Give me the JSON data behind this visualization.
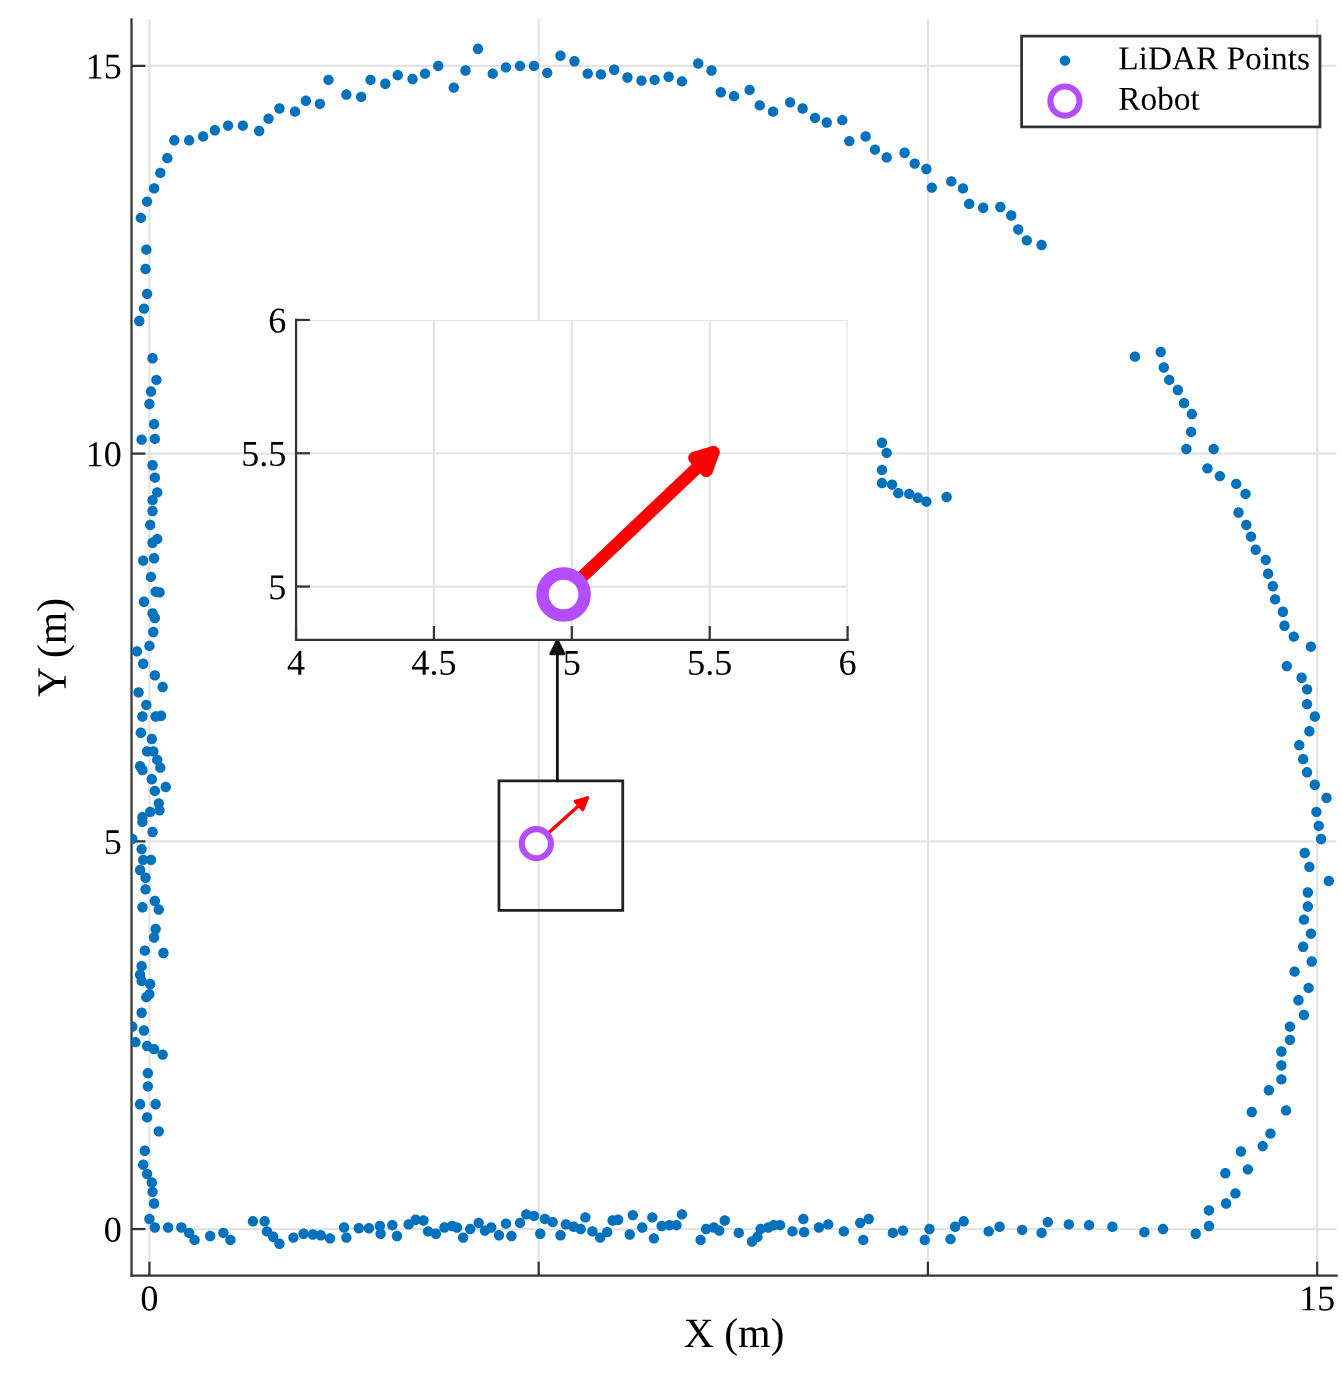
{
  "chart_data": [
    {
      "type": "scatter",
      "xlabel": "X (m)",
      "ylabel": "Y (m)",
      "xlim": [
        -0.23,
        15.25
      ],
      "ylim": [
        -0.6,
        15.6
      ],
      "xticks": [
        0,
        {
          "value": 5,
          "label": null
        },
        {
          "value": 10,
          "label": null
        },
        15
      ],
      "yticks": [
        0,
        5,
        10,
        15
      ],
      "grid": true,
      "legend": "top right",
      "marker": "circle",
      "series": [
        {
          "name": "LiDAR Points",
          "color": "#0072bd",
          "x": [
            -0.04,
            -0.11,
            -0.03,
            0.06,
            0.14,
            0.23,
            0.32,
            0.51,
            0.69,
            0.84,
            1.01,
            1.2,
            1.41,
            1.53,
            1.67,
            1.87,
            2.01,
            2.19,
            2.3,
            2.53,
            2.72,
            2.84,
            3.03,
            3.19,
            3.38,
            3.54,
            3.71,
            3.91,
            4.06,
            4.22,
            4.41,
            4.58,
            4.76,
            4.94,
            5.11,
            5.28,
            5.46,
            5.63,
            5.8,
            5.97,
            6.14,
            6.32,
            6.49,
            6.67,
            6.84,
            7.05,
            7.22,
            7.34,
            7.51,
            7.71,
            7.84,
            8.01,
            8.23,
            8.39,
            8.55,
            8.7,
            8.9,
            8.99,
            9.2,
            9.32,
            9.47,
            9.7,
            9.83,
            9.98,
            10.05,
            10.3,
            10.45,
            10.53,
            10.71,
            10.93,
            11.07,
            11.16,
            11.27,
            11.46,
            9.41,
            9.47,
            9.41,
            9.41,
            9.54,
            9.62,
            9.76,
            9.87,
            9.98,
            10.24,
            12.66,
            12.99,
            13.03,
            13.1,
            13.21,
            13.29,
            13.39,
            13.38,
            13.32,
            13.67,
            13.59,
            13.75,
            13.96,
            14.08,
            13.99,
            14.09,
            14.15,
            14.21,
            14.34,
            14.37,
            14.43,
            14.46,
            14.56,
            14.58,
            14.7,
            14.92,
            14.61,
            14.8,
            14.87,
            14.87,
            14.97,
            14.9,
            14.77,
            14.82,
            14.87,
            14.97,
            15.12,
            14.99,
            15.02,
            15.05,
            14.84,
            14.9,
            15.15,
            14.88,
            14.88,
            14.83,
            14.92,
            14.82,
            14.93,
            14.71,
            14.89,
            14.76,
            14.83,
            14.65,
            14.65,
            14.54,
            14.54,
            14.54,
            14.38,
            14.6,
            14.16,
            14.4,
            14.3,
            14.02,
            14.11,
            13.82,
            13.95,
            13.83,
            13.61,
            13.61,
            13.44,
            13.02,
            12.78,
            12.37,
            12.07,
            -0.06,
            -0.08,
            -0.03,
            0.03,
            0.04,
            0.06,
            0.0,
            0.07,
            0.24,
            0.41,
            0.51,
            0.58,
            0.78,
            0.95,
            1.04,
            1.33,
            1.48,
            1.51,
            1.59,
            1.67,
            1.85,
            1.98,
            2.1,
            2.2,
            2.32,
            2.5,
            2.53,
            2.69,
            2.82,
            2.96,
            2.97,
            3.12,
            3.18,
            3.33,
            3.42,
            3.52,
            3.58,
            3.68,
            3.79,
            3.89,
            3.95,
            4.03,
            4.12,
            4.23,
            4.31,
            4.39,
            4.49,
            4.58,
            4.65,
            4.76,
            4.84,
            4.94,
            5.02,
            5.08,
            5.18,
            5.28,
            5.35,
            5.45,
            5.54,
            5.6,
            5.69,
            5.79,
            5.88,
            5.95,
            6.02,
            6.17,
            6.21,
            6.33,
            6.46,
            6.48,
            6.58,
            6.68,
            6.77,
            6.84,
            7.08,
            7.15,
            7.25,
            7.32,
            7.39,
            7.57,
            7.74,
            7.81,
            7.85,
            7.95,
            8.02,
            8.1,
            8.26,
            8.4,
            8.41,
            8.6,
            8.72,
            8.92,
            9.13,
            9.17,
            9.24,
            9.55,
            9.68,
            9.96,
            10.02,
            10.29,
            10.35,
            10.46,
            10.78,
            10.92,
            11.21,
            11.46,
            11.54,
            11.81,
            -0.05,
            -0.03,
            -0.07,
            -0.13,
            0.04,
            0.09,
            0.02,
            0.0,
            0.06,
            0.07,
            -0.1,
            0.04,
            0.07,
            0.1,
            0.04,
            0.04,
            0.01,
            0.1,
            0.04,
            -0.08,
            0.06,
            0.02,
            0.08,
            0.13,
            -0.07,
            0.04,
            0.07,
            0.05,
            0.0,
            -0.16,
            -0.08,
            0.07,
            0.17,
            -0.14,
            -0.04,
            -0.09,
            0.08,
            -0.11,
            0.15,
            0.03,
            -0.03,
            0.05,
            -0.12,
            -0.09,
            0.1,
            0.03,
            0.14,
            0.21,
            0.07,
            0.12,
            0.13,
            0.01,
            -0.09,
            0.04,
            -0.09,
            -0.22,
            -0.1,
            -0.08,
            0.02,
            -0.12,
            -0.05,
            -0.05,
            0.07,
            -0.09,
            0.12,
            0.08,
            0.06,
            0.18,
            -0.06,
            -0.1,
            -0.12,
            -0.1,
            0.01,
            -0.04,
            0.0,
            -0.1,
            -0.22,
            -0.07,
            -0.18,
            -0.03,
            0.06,
            0.17,
            -0.02,
            -0.02,
            0.08,
            -0.12,
            -0.03,
            0.12
          ],
          "values": [
            12.63,
            13.04,
            13.25,
            13.42,
            13.62,
            13.81,
            14.04,
            14.04,
            14.09,
            14.17,
            14.23,
            14.23,
            14.16,
            14.32,
            14.45,
            14.41,
            14.55,
            14.51,
            14.82,
            14.63,
            14.6,
            14.82,
            14.77,
            14.88,
            14.83,
            14.9,
            15.0,
            14.72,
            14.94,
            15.22,
            14.9,
            14.98,
            15.0,
            15.0,
            14.91,
            15.13,
            15.06,
            14.9,
            14.89,
            14.95,
            14.85,
            14.81,
            14.82,
            14.86,
            14.8,
            15.03,
            14.94,
            14.66,
            14.61,
            14.69,
            14.49,
            14.41,
            14.53,
            14.45,
            14.33,
            14.27,
            14.3,
            14.03,
            14.09,
            13.92,
            13.82,
            13.88,
            13.74,
            13.67,
            13.43,
            13.51,
            13.42,
            13.22,
            13.17,
            13.18,
            13.07,
            12.89,
            12.75,
            12.69,
            10.14,
            10.01,
            9.79,
            9.62,
            9.6,
            9.49,
            9.48,
            9.43,
            9.38,
            9.44,
            11.25,
            11.31,
            11.11,
            10.95,
            10.82,
            10.65,
            10.51,
            10.28,
            10.06,
            10.06,
            9.81,
            9.71,
            9.61,
            9.48,
            9.24,
            9.08,
            8.93,
            8.76,
            8.63,
            8.45,
            8.29,
            8.12,
            7.96,
            7.78,
            7.64,
            7.51,
            7.26,
            7.11,
            6.96,
            6.77,
            6.61,
            6.42,
            6.24,
            6.06,
            5.89,
            5.73,
            5.56,
            5.38,
            5.2,
            5.03,
            4.85,
            4.67,
            4.49,
            4.34,
            4.16,
            3.99,
            3.81,
            3.64,
            3.45,
            3.32,
            3.11,
            2.95,
            2.76,
            2.61,
            2.44,
            2.29,
            2.11,
            1.93,
            1.79,
            1.53,
            1.51,
            1.23,
            1.07,
            1.0,
            0.77,
            0.72,
            0.46,
            0.33,
            0.24,
            0.04,
            -0.06,
            0.0,
            -0.04,
            0.03,
            0.05,
            1.01,
            0.83,
            0.71,
            0.6,
            0.48,
            0.33,
            0.13,
            0.02,
            0.02,
            0.02,
            -0.05,
            -0.14,
            -0.09,
            -0.05,
            -0.14,
            0.1,
            0.1,
            -0.03,
            -0.1,
            -0.19,
            -0.11,
            -0.06,
            -0.07,
            -0.08,
            -0.12,
            0.02,
            -0.11,
            0.01,
            0.01,
            0.04,
            -0.06,
            0.05,
            -0.09,
            0.06,
            0.12,
            0.11,
            -0.03,
            -0.06,
            0.02,
            0.04,
            0.02,
            -0.11,
            0.0,
            0.08,
            -0.02,
            0.02,
            -0.08,
            0.07,
            -0.09,
            0.08,
            0.19,
            0.17,
            -0.06,
            0.13,
            0.09,
            -0.08,
            0.06,
            0.03,
            0.0,
            0.15,
            -0.03,
            -0.11,
            -0.04,
            0.11,
            0.12,
            -0.07,
            0.18,
            0.02,
            0.15,
            -0.12,
            0.04,
            0.05,
            0.05,
            0.19,
            -0.14,
            0.0,
            0.02,
            -0.02,
            0.11,
            -0.05,
            -0.16,
            -0.1,
            0.0,
            0.02,
            0.05,
            0.05,
            -0.03,
            0.13,
            -0.04,
            0.02,
            0.06,
            -0.03,
            0.08,
            -0.14,
            0.13,
            -0.05,
            -0.02,
            -0.14,
            0.0,
            -0.13,
            0.03,
            0.1,
            -0.03,
            0.03,
            -0.01,
            -0.05,
            0.09,
            0.06,
            12.38,
            12.06,
            11.87,
            11.71,
            11.23,
            10.95,
            10.8,
            10.64,
            10.38,
            10.19,
            10.18,
            9.85,
            9.69,
            9.5,
            9.4,
            9.26,
            9.08,
            8.9,
            8.85,
            8.62,
            8.65,
            8.41,
            8.22,
            8.21,
            8.09,
            7.94,
            7.88,
            7.7,
            7.52,
            7.45,
            7.29,
            7.14,
            6.99,
            6.92,
            6.76,
            6.61,
            6.61,
            6.4,
            6.62,
            6.32,
            6.16,
            6.16,
            5.97,
            5.92,
            6.05,
            5.8,
            5.95,
            5.7,
            5.65,
            5.49,
            5.4,
            5.38,
            5.31,
            5.12,
            5.25,
            5.03,
            4.9,
            4.76,
            4.76,
            4.63,
            4.53,
            4.38,
            4.23,
            4.15,
            4.12,
            3.87,
            3.76,
            3.56,
            3.59,
            3.39,
            3.28,
            3.2,
            3.16,
            2.99,
            3.03,
            2.79,
            2.61,
            2.56,
            2.41,
            2.36,
            2.32,
            2.25,
            2.01,
            1.84,
            1.61,
            1.61,
            1.44,
            1.26
          ]
        },
        {
          "name": "Robot",
          "color": "#b44cff",
          "x": [
            4.97
          ],
          "values": [
            4.97
          ]
        }
      ]
    },
    {
      "type": "scatter",
      "xlim": [
        4,
        6
      ],
      "ylim": [
        4.8,
        6
      ],
      "xticks": [
        4,
        4.5,
        5,
        5.5,
        6
      ],
      "yticks": [
        5,
        5.5,
        6
      ],
      "grid": true,
      "marker": "circle",
      "series": [
        {
          "color": "#b44cff",
          "x": [
            4.97
          ],
          "values": [
            4.97
          ]
        }
      ]
    }
  ]
}
